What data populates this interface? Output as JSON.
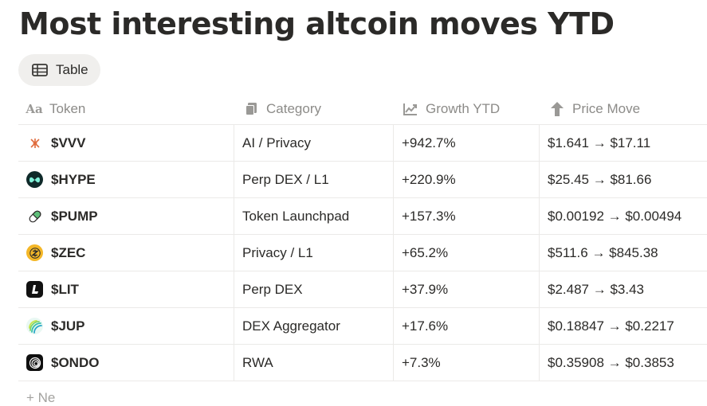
{
  "page": {
    "title": "Most interesting altcoin moves YTD"
  },
  "view": {
    "tab_label": "Table",
    "tab_icon": "table-icon"
  },
  "columns": [
    {
      "label": "Token",
      "icon": "text-property-icon"
    },
    {
      "label": "Category",
      "icon": "multi-select-icon"
    },
    {
      "label": "Growth YTD",
      "icon": "chart-icon"
    },
    {
      "label": "Price Move",
      "icon": "arrow-up-icon"
    }
  ],
  "rows": [
    {
      "token": "$VVV",
      "category": "AI / Privacy",
      "growth": "+942.7%",
      "price": "$1.641 → $17.11",
      "icon_color": "#e06d3f"
    },
    {
      "token": "$HYPE",
      "category": "Perp DEX / L1",
      "growth": "+220.9%",
      "price": "$25.45 → $81.66",
      "icon_color": "#0f2a2a"
    },
    {
      "token": "$PUMP",
      "category": "Token Launchpad",
      "growth": "+157.3%",
      "price": "$0.00192 → $0.00494",
      "icon_color": "#5fbf7a"
    },
    {
      "token": "$ZEC",
      "category": "Privacy / L1",
      "growth": "+65.2%",
      "price": "$511.6 → $845.38",
      "icon_color": "#f4b728"
    },
    {
      "token": "$LIT",
      "category": "Perp DEX",
      "growth": "+37.9%",
      "price": "$2.487 → $3.43",
      "icon_color": "#111111"
    },
    {
      "token": "$JUP",
      "category": "DEX Aggregator",
      "growth": "+17.6%",
      "price": "$0.18847 → $0.2217",
      "icon_color": "#35c0a8"
    },
    {
      "token": "$ONDO",
      "category": "RWA",
      "growth": "+7.3%",
      "price": "$0.35908 → $0.3853",
      "icon_color": "#101010"
    }
  ],
  "footer": {
    "new_label": "+ Ne"
  }
}
